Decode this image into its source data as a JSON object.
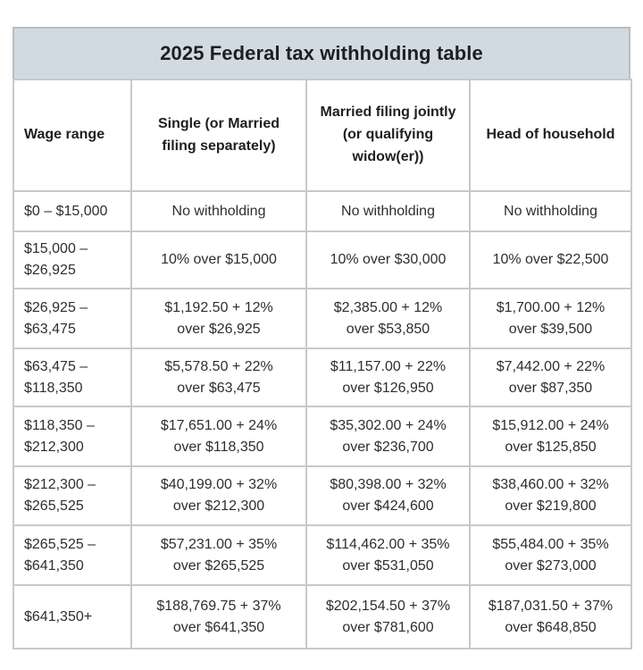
{
  "table": {
    "title": "2025 Federal tax withholding table",
    "title_bg": "#d2dae1",
    "border_color": "#c6cacd",
    "columns": [
      "Wage range",
      "Single (or Married\nfiling separately)",
      "Married filing jointly\n(or qualifying\nwidow(er))",
      "Head of household"
    ],
    "rows": [
      {
        "wage_range": "$0 – $15,000",
        "single": "No withholding",
        "married_joint": "No withholding",
        "head_household": "No withholding"
      },
      {
        "wage_range": "$15,000 –\n$26,925",
        "single": "10% over $15,000",
        "married_joint": "10% over $30,000",
        "head_household": "10% over $22,500"
      },
      {
        "wage_range": "$26,925 –\n$63,475",
        "single": "$1,192.50 + 12%\nover $26,925",
        "married_joint": "$2,385.00 + 12%\nover $53,850",
        "head_household": "$1,700.00 + 12%\nover $39,500"
      },
      {
        "wage_range": "$63,475 –\n$118,350",
        "single": "$5,578.50 + 22%\nover $63,475",
        "married_joint": "$11,157.00 + 22%\nover $126,950",
        "head_household": "$7,442.00 + 22%\nover $87,350"
      },
      {
        "wage_range": "$118,350 –\n$212,300",
        "single": "$17,651.00 + 24%\nover $118,350",
        "married_joint": "$35,302.00 + 24%\nover $236,700",
        "head_household": "$15,912.00 + 24%\nover $125,850"
      },
      {
        "wage_range": "$212,300 –\n$265,525",
        "single": "$40,199.00 + 32%\nover $212,300",
        "married_joint": "$80,398.00 + 32%\nover $424,600",
        "head_household": "$38,460.00 + 32%\nover $219,800"
      },
      {
        "wage_range": "$265,525 –\n$641,350",
        "single": "$57,231.00 + 35%\nover $265,525",
        "married_joint": "$114,462.00 + 35%\nover $531,050",
        "head_household": "$55,484.00 + 35%\nover $273,000"
      },
      {
        "wage_range": "$641,350+",
        "single": "$188,769.75 + 37%\nover $641,350",
        "married_joint": "$202,154.50 + 37%\nover $781,600",
        "head_household": "$187,031.50 + 37%\nover $648,850"
      }
    ]
  }
}
